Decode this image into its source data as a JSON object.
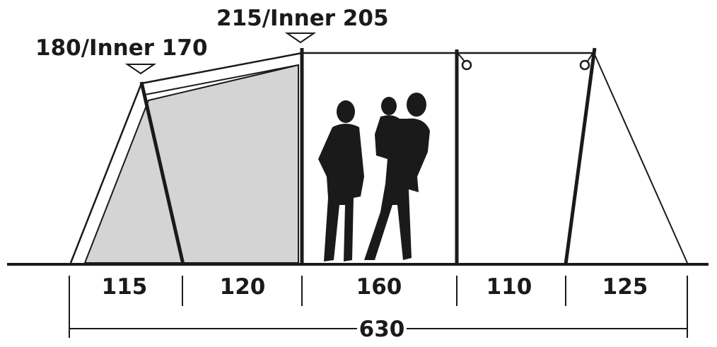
{
  "heights": {
    "front": "180/Inner 170",
    "rear": "215/Inner 205"
  },
  "section_widths": [
    "115",
    "120",
    "160",
    "110",
    "125"
  ],
  "total_length": "630",
  "colors": {
    "line": "#1a1a1a",
    "inner_fill": "#d4d4d4"
  }
}
